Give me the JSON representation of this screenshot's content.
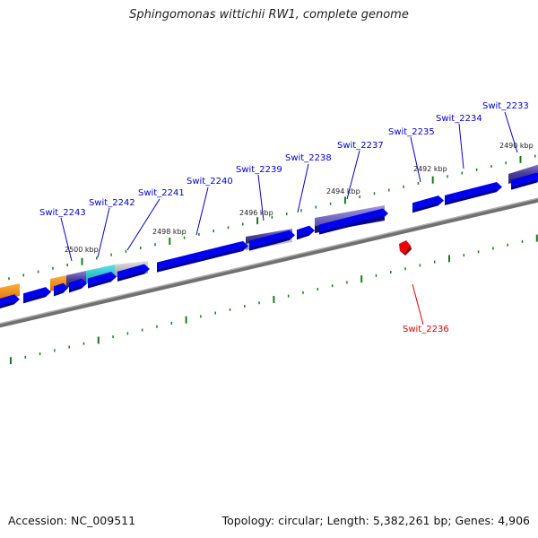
{
  "title": "Sphingomonas wittichii RW1, complete genome",
  "footer": {
    "accession": "Accession: NC_009511",
    "summary": "Topology: circular; Length: 5,382,261 bp; Genes: 4,906"
  },
  "colors": {
    "forward_gene": "#0000ee",
    "forward_gene_dark": "#00008b",
    "gene_label": "#0000cc",
    "highlight_gene_label": "#dd0000",
    "highlight_gene": "#ee0000",
    "backbone": "#808080",
    "tick": "#1a7a1a",
    "purple_feature": "#5a4fa8",
    "cyan_feature": "#20c0c8",
    "orange_feature": "#f08a10",
    "gray_feature": "#b8b8b8"
  },
  "kbp_ticks": [
    "2500 kbp",
    "2498 kbp",
    "2496 kbp",
    "2494 kbp",
    "2492 kbp",
    "2490 kbp"
  ],
  "gene_labels": [
    "Swit_2243",
    "Swit_2242",
    "Swit_2241",
    "Swit_2240",
    "Swit_2239",
    "Swit_2238",
    "Swit_2237",
    "Swit_2235",
    "Swit_2234",
    "Swit_2233"
  ],
  "highlight_label": "Swit_2236"
}
